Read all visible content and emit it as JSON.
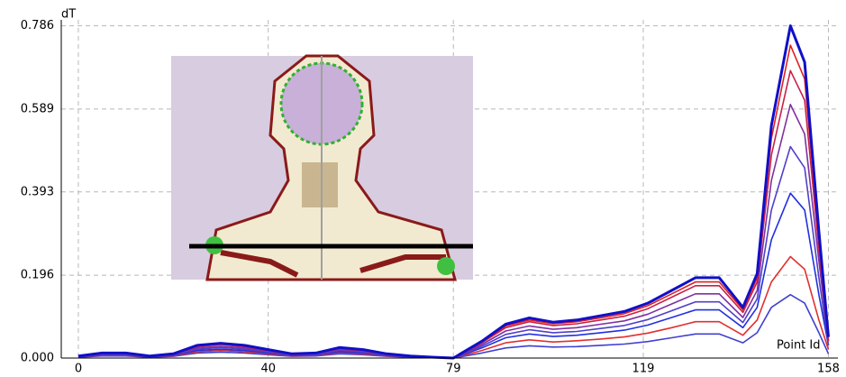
{
  "chart_data": {
    "type": "line",
    "y_label": "dT",
    "x_label": "Point Id",
    "xlim": [
      -3.6,
      160
    ],
    "ylim": [
      0,
      0.8
    ],
    "xticks": [
      0,
      40,
      79,
      119,
      158
    ],
    "yticks": [
      {
        "value": 0,
        "label": "0.000"
      },
      0.196,
      0.393,
      0.589,
      0.786
    ],
    "grid": true,
    "x": [
      0,
      5,
      10,
      15,
      20,
      25,
      30,
      35,
      40,
      45,
      50,
      55,
      60,
      65,
      70,
      75,
      79,
      85,
      90,
      95,
      100,
      105,
      110,
      115,
      120,
      125,
      130,
      135,
      140,
      143,
      146,
      150,
      153,
      156,
      158
    ],
    "series": [
      {
        "color": "#1010c8",
        "values": [
          0.005,
          0.012,
          0.012,
          0.005,
          0.01,
          0.03,
          0.035,
          0.03,
          0.02,
          0.01,
          0.012,
          0.025,
          0.02,
          0.01,
          0.005,
          0.002,
          0,
          0.04,
          0.08,
          0.095,
          0.085,
          0.09,
          0.1,
          0.11,
          0.13,
          0.16,
          0.19,
          0.19,
          0.12,
          0.2,
          0.55,
          0.786,
          0.7,
          0.3,
          0.05
        ]
      },
      {
        "color": "#e02020",
        "values": [
          0.005,
          0.012,
          0.012,
          0.005,
          0.01,
          0.03,
          0.035,
          0.03,
          0.02,
          0.01,
          0.012,
          0.025,
          0.02,
          0.01,
          0.005,
          0.002,
          0,
          0.038,
          0.076,
          0.09,
          0.081,
          0.086,
          0.095,
          0.105,
          0.124,
          0.152,
          0.18,
          0.18,
          0.114,
          0.19,
          0.52,
          0.74,
          0.66,
          0.28,
          0.05
        ]
      },
      {
        "color": "#c82048",
        "values": [
          0.005,
          0.011,
          0.011,
          0.005,
          0.009,
          0.027,
          0.032,
          0.027,
          0.018,
          0.009,
          0.011,
          0.023,
          0.018,
          0.009,
          0.005,
          0.002,
          0,
          0.036,
          0.072,
          0.086,
          0.077,
          0.081,
          0.09,
          0.099,
          0.117,
          0.144,
          0.171,
          0.171,
          0.108,
          0.18,
          0.48,
          0.68,
          0.61,
          0.26,
          0.04
        ]
      },
      {
        "color": "#8030a0",
        "values": [
          0.004,
          0.01,
          0.01,
          0.004,
          0.008,
          0.024,
          0.028,
          0.024,
          0.016,
          0.008,
          0.01,
          0.02,
          0.016,
          0.008,
          0.004,
          0.002,
          0,
          0.032,
          0.064,
          0.076,
          0.068,
          0.072,
          0.08,
          0.088,
          0.104,
          0.128,
          0.152,
          0.152,
          0.096,
          0.16,
          0.42,
          0.6,
          0.53,
          0.23,
          0.04
        ]
      },
      {
        "color": "#5040c8",
        "values": [
          0.004,
          0.008,
          0.008,
          0.004,
          0.007,
          0.021,
          0.025,
          0.021,
          0.014,
          0.007,
          0.008,
          0.018,
          0.014,
          0.007,
          0.004,
          0.001,
          0,
          0.028,
          0.056,
          0.067,
          0.06,
          0.063,
          0.07,
          0.077,
          0.091,
          0.112,
          0.133,
          0.133,
          0.084,
          0.14,
          0.35,
          0.5,
          0.45,
          0.19,
          0.03
        ]
      },
      {
        "color": "#2030e0",
        "values": [
          0.003,
          0.007,
          0.007,
          0.003,
          0.006,
          0.018,
          0.021,
          0.018,
          0.012,
          0.006,
          0.007,
          0.015,
          0.012,
          0.006,
          0.003,
          0.001,
          0,
          0.024,
          0.048,
          0.057,
          0.051,
          0.054,
          0.06,
          0.066,
          0.078,
          0.096,
          0.114,
          0.114,
          0.072,
          0.12,
          0.28,
          0.39,
          0.35,
          0.15,
          0.03
        ]
      },
      {
        "color": "#e03030",
        "values": [
          0.003,
          0.006,
          0.006,
          0.003,
          0.005,
          0.015,
          0.018,
          0.015,
          0.01,
          0.005,
          0.006,
          0.013,
          0.01,
          0.005,
          0.003,
          0.001,
          0,
          0.018,
          0.036,
          0.043,
          0.038,
          0.041,
          0.045,
          0.05,
          0.059,
          0.072,
          0.086,
          0.086,
          0.054,
          0.09,
          0.18,
          0.24,
          0.21,
          0.09,
          0.02
        ]
      },
      {
        "color": "#4040d0",
        "values": [
          0.002,
          0.005,
          0.005,
          0.002,
          0.004,
          0.012,
          0.014,
          0.012,
          0.008,
          0.004,
          0.005,
          0.01,
          0.008,
          0.004,
          0.002,
          0.001,
          0,
          0.012,
          0.024,
          0.029,
          0.026,
          0.027,
          0.03,
          0.033,
          0.039,
          0.048,
          0.057,
          0.057,
          0.036,
          0.06,
          0.12,
          0.15,
          0.13,
          0.06,
          0.01
        ]
      }
    ]
  }
}
